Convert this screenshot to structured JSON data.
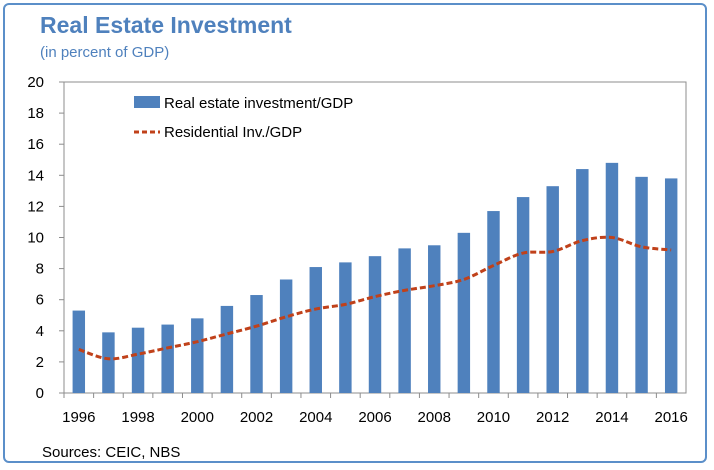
{
  "title": "Real Estate Investment",
  "subtitle": "(in percent of GDP)",
  "source": "Sources: CEIC, NBS",
  "chart_data": {
    "type": "bar",
    "x": [
      1996,
      1997,
      1998,
      1999,
      2000,
      2001,
      2002,
      2003,
      2004,
      2005,
      2006,
      2007,
      2008,
      2009,
      2010,
      2011,
      2012,
      2013,
      2014,
      2015,
      2016
    ],
    "series": [
      {
        "name": "Real estate investment/GDP",
        "type": "bar",
        "color": "#4f81bd",
        "values": [
          5.3,
          3.9,
          4.2,
          4.4,
          4.8,
          5.6,
          6.3,
          7.3,
          8.1,
          8.4,
          8.8,
          9.3,
          9.5,
          10.3,
          11.7,
          12.6,
          13.3,
          14.4,
          14.8,
          13.9,
          13.8
        ]
      },
      {
        "name": "Residential Inv./GDP",
        "type": "line",
        "color": "#c0411a",
        "values": [
          2.8,
          2.2,
          2.5,
          2.9,
          3.3,
          3.8,
          4.3,
          4.9,
          5.4,
          5.7,
          6.2,
          6.6,
          6.9,
          7.3,
          8.2,
          9.0,
          9.1,
          9.8,
          10.0,
          9.4,
          9.2
        ]
      }
    ],
    "x_tick_labels": [
      "1996",
      "1998",
      "2000",
      "2002",
      "2004",
      "2006",
      "2008",
      "2010",
      "2012",
      "2014",
      "2016"
    ],
    "y_tick_labels": [
      "0",
      "2",
      "4",
      "6",
      "8",
      "10",
      "12",
      "14",
      "16",
      "18",
      "20"
    ],
    "ylim": [
      0,
      20
    ],
    "xlim": [
      1996,
      2016
    ],
    "grid": false,
    "legend_position": "top-left"
  }
}
